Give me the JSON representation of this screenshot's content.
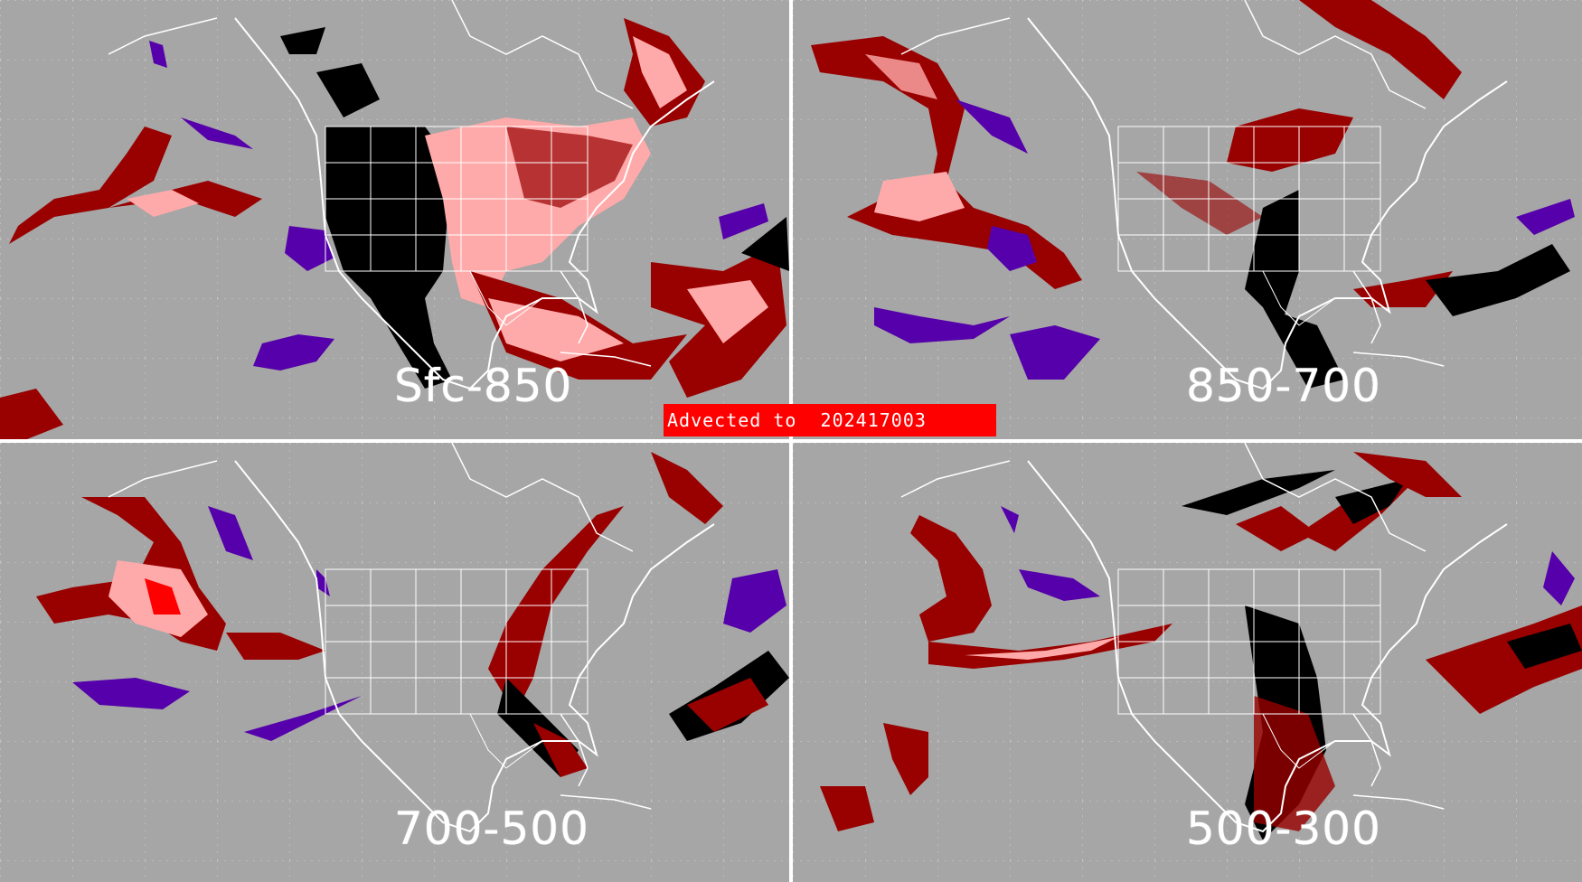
{
  "banner": {
    "text": "Advected to  202417003"
  },
  "panels": [
    {
      "label": "Sfc-850"
    },
    {
      "label": "850-700"
    },
    {
      "label": "700-500"
    },
    {
      "label": "500-300"
    }
  ],
  "colors": {
    "background": "#a6a6a6",
    "land_borders": "#ffffff",
    "dark_red": "#990000",
    "pink": "#ffaaaa",
    "bright_red": "#ff0000",
    "black": "#000000",
    "purple": "#5500aa",
    "banner": "#ff0000",
    "panel_divider": "#ffffff"
  }
}
